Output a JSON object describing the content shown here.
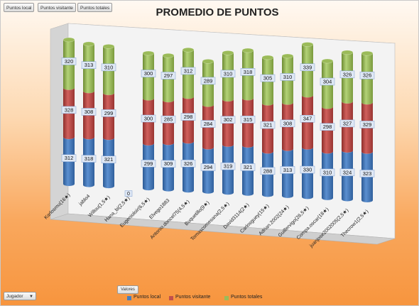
{
  "toolbar": {
    "buttons": [
      "Puntos local",
      "Puntos visitante",
      "Puntos totales"
    ]
  },
  "axis_button": "Valores",
  "filter": {
    "label": "Jugador",
    "arrow": "▼"
  },
  "chart_data": {
    "type": "bar",
    "stacked": true,
    "three_d": true,
    "title": "PROMEDIO DE PUNTOS",
    "categories": [
      "Karlosmu(16★)",
      "jablo4",
      "Willou(1,5★)",
      "Hana_bi(2,5★)",
      "Eugenioloir(6,5★)",
      "Elvego1883",
      "Antonio.doncel75(4,5★)",
      "Buquetillo(9★)",
      "Tomascomesana(2,5★)",
      "David3114(2★)",
      "Carlosguey(15★)",
      "Adrian.2002(24★)",
      "Guillervigo(26,5★)",
      "Compa.oscar(18★)",
      "juanjose2002005(2,5★)",
      "Thecrow1(2,5★)"
    ],
    "series": [
      {
        "name": "Puntos local",
        "color": "#4a7ebb",
        "values": [
          312,
          318,
          321,
          0,
          299,
          309,
          326,
          294,
          319,
          321,
          288,
          313,
          330,
          310,
          324,
          323
        ]
      },
      {
        "name": "Puntos visitante",
        "color": "#c0504d",
        "values": [
          328,
          308,
          299,
          0,
          300,
          285,
          298,
          284,
          302,
          315,
          321,
          308,
          347,
          298,
          327,
          329
        ]
      },
      {
        "name": "Puntos totales",
        "color": "#9bbb59",
        "values": [
          320,
          313,
          310,
          0,
          300,
          297,
          312,
          289,
          310,
          318,
          305,
          310,
          339,
          304,
          326,
          326
        ]
      }
    ],
    "zero_label": "0",
    "legend_position": "bottom",
    "grid": false
  }
}
